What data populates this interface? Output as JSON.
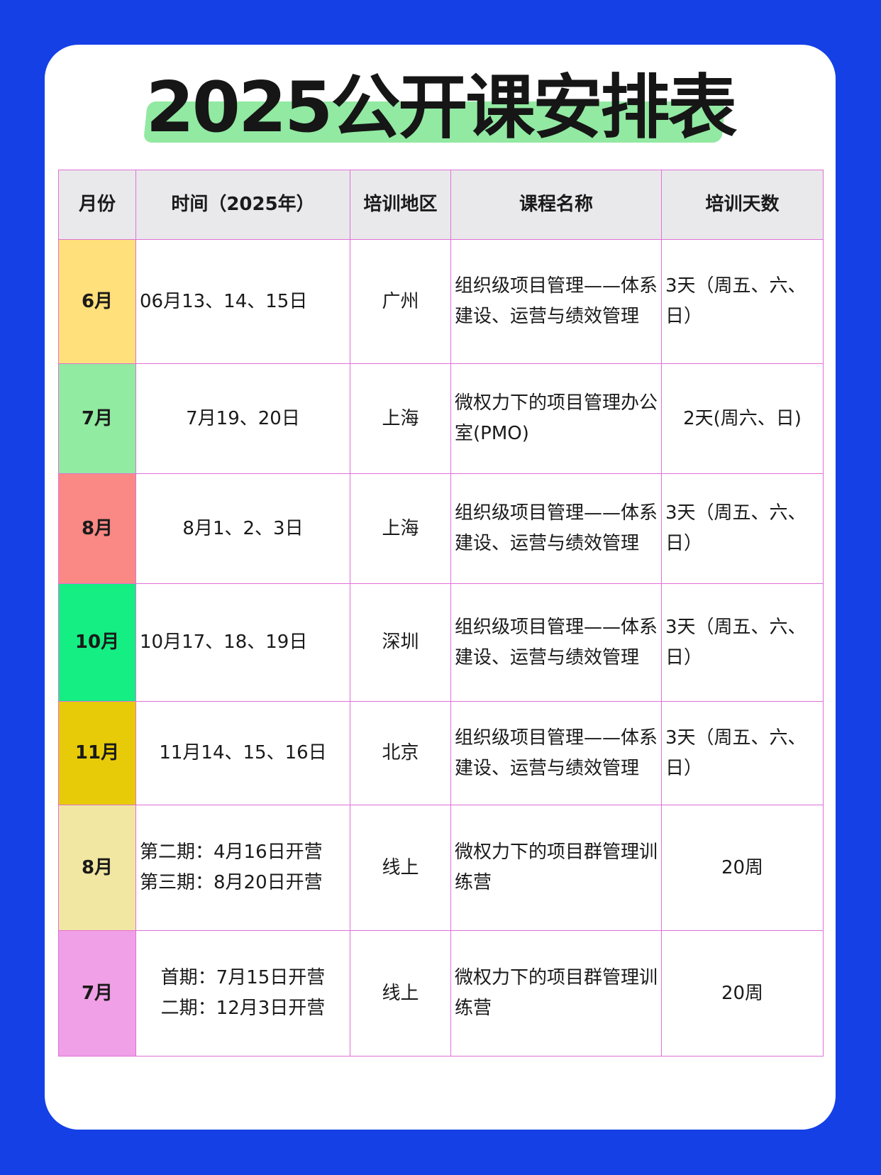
{
  "title": "2025公开课安排表",
  "colors": {
    "background": "#1440E6",
    "highlight": "#92E9A2",
    "border": "#E070D6",
    "header_bg": "#E9E9EC"
  },
  "table": {
    "headers": [
      "月份",
      "时间（2025年）",
      "培训地区",
      "课程名称",
      "培训天数"
    ],
    "rows": [
      {
        "month": "6月",
        "color": "#FFE07A",
        "time": [
          "06月13、14、15日"
        ],
        "time_align": "l",
        "region": "广州",
        "course": "组织级项目管理——体系建设、运营与绩效管理",
        "days": "3天（周五、六、日）",
        "days_align": "l"
      },
      {
        "month": "7月",
        "color": "#91EBA0",
        "time": [
          "7月19、20日"
        ],
        "time_align": "c",
        "region": "上海",
        "course": "微权力下的项目管理办公室(PMO)",
        "days": "2天(周六、日)",
        "days_align": "c"
      },
      {
        "month": "8月",
        "color": "#FA8884",
        "time": [
          "8月1、2、3日"
        ],
        "time_align": "c",
        "region": "上海",
        "course": "组织级项目管理——体系建设、运营与绩效管理",
        "days": "3天（周五、六、日）",
        "days_align": "l"
      },
      {
        "month": "10月",
        "color": "#14EE82",
        "time": [
          "10月17、18、19日"
        ],
        "time_align": "l",
        "region": "深圳",
        "course": "组织级项目管理——体系建设、运营与绩效管理",
        "days": "3天（周五、六、日）",
        "days_align": "l"
      },
      {
        "month": "11月",
        "color": "#E7CB08",
        "time": [
          "11月14、15、16日"
        ],
        "time_align": "c",
        "region": "北京",
        "course": "组织级项目管理——体系建设、运营与绩效管理",
        "days": "3天（周五、六、日）",
        "days_align": "l"
      },
      {
        "month": "8月",
        "color": "#F1E7A2",
        "time": [
          "第二期：4月16日开营",
          "第三期：8月20日开营"
        ],
        "time_align": "l",
        "region": "线上",
        "course": "微权力下的项目群管理训练营",
        "days": "20周",
        "days_align": "c"
      },
      {
        "month": "7月",
        "color": "#EFA0E6",
        "time": [
          "首期：7月15日开营",
          "二期：12月3日开营"
        ],
        "time_align": "c",
        "region": "线上",
        "course": "微权力下的项目群管理训练营",
        "days": "20周",
        "days_align": "c"
      }
    ]
  }
}
